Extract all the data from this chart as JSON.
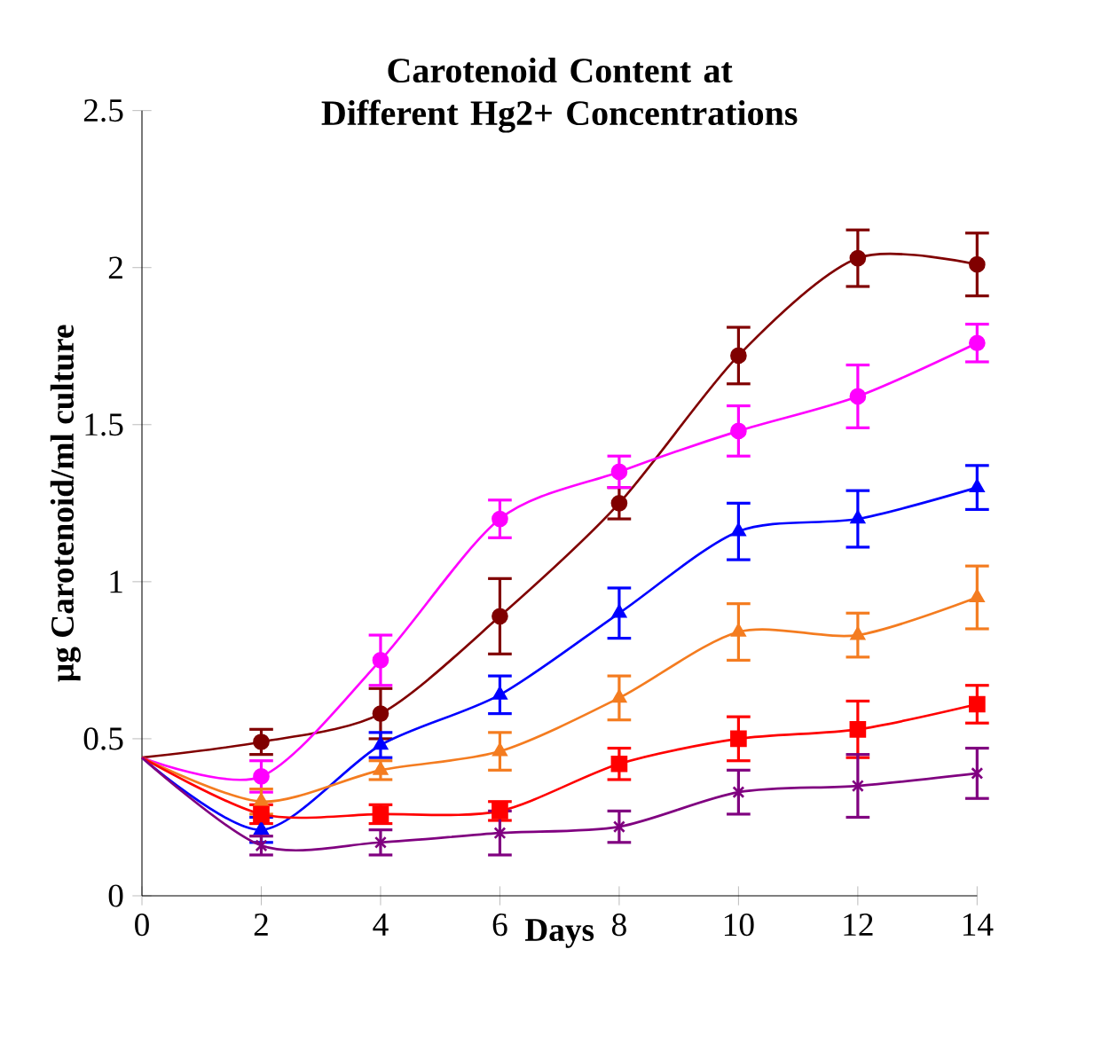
{
  "chart_data": {
    "type": "line",
    "title": "Carotenoid Content at Different Hg2+ Concentrations",
    "xlabel": "Days",
    "ylabel": "µg Carotenoid/ml culture",
    "x": [
      0,
      2,
      4,
      6,
      8,
      10,
      12,
      14
    ],
    "xlim": [
      0,
      14
    ],
    "xticks": [
      0,
      2,
      4,
      6,
      8,
      10,
      12,
      14
    ],
    "ylim": [
      0,
      2.5
    ],
    "yticks": [
      0,
      0.5,
      1,
      1.5,
      2,
      2.5
    ],
    "series": [
      {
        "color": "#800000",
        "marker": "circle",
        "values": [
          0.44,
          0.49,
          0.58,
          0.89,
          1.25,
          1.72,
          2.03,
          2.01
        ],
        "errors": [
          null,
          0.04,
          0.08,
          0.12,
          0.05,
          0.09,
          0.09,
          0.1
        ]
      },
      {
        "color": "#ff00ff",
        "marker": "circle",
        "values": [
          0.44,
          0.38,
          0.75,
          1.2,
          1.35,
          1.48,
          1.59,
          1.76
        ],
        "errors": [
          null,
          0.05,
          0.08,
          0.06,
          0.05,
          0.08,
          0.1,
          0.06
        ]
      },
      {
        "color": "#0000ff",
        "marker": "triangle",
        "values": [
          0.44,
          0.21,
          0.48,
          0.64,
          0.9,
          1.16,
          1.2,
          1.3
        ],
        "errors": [
          null,
          0.04,
          0.04,
          0.06,
          0.08,
          0.09,
          0.09,
          0.07
        ]
      },
      {
        "color": "#f47c20",
        "marker": "triangle",
        "values": [
          0.44,
          0.3,
          0.4,
          0.46,
          0.63,
          0.84,
          0.83,
          0.95
        ],
        "errors": [
          null,
          0.04,
          0.03,
          0.06,
          0.07,
          0.09,
          0.07,
          0.1
        ]
      },
      {
        "color": "#ff0000",
        "marker": "square",
        "values": [
          0.44,
          0.26,
          0.26,
          0.27,
          0.42,
          0.5,
          0.53,
          0.61
        ],
        "errors": [
          null,
          0.03,
          0.03,
          0.03,
          0.05,
          0.07,
          0.09,
          0.06
        ]
      },
      {
        "color": "#800080",
        "marker": "cross",
        "values": [
          0.44,
          0.16,
          0.17,
          0.2,
          0.22,
          0.33,
          0.35,
          0.39
        ],
        "errors": [
          null,
          0.03,
          0.04,
          0.07,
          0.05,
          0.07,
          0.1,
          0.08
        ]
      }
    ]
  }
}
